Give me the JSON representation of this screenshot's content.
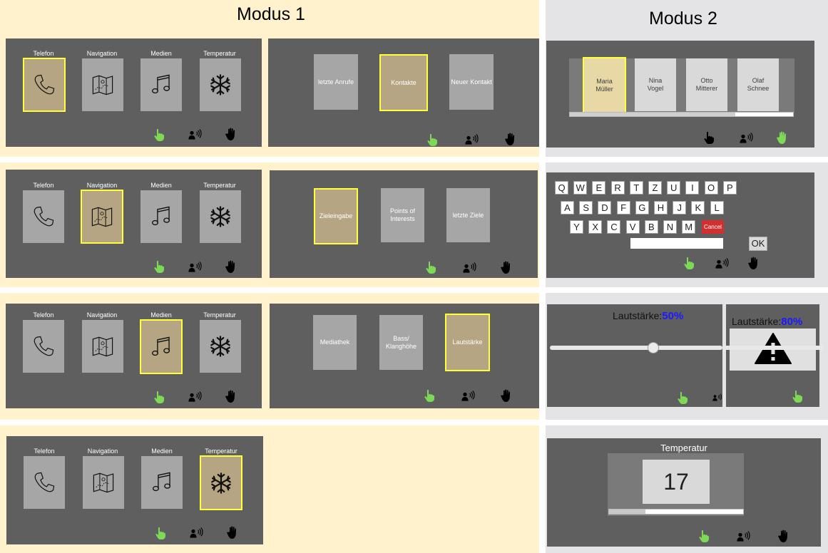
{
  "modes": {
    "mode1": "Modus 1",
    "mode2": "Modus 2"
  },
  "main_menu": {
    "telefon": "Telefon",
    "navigation": "Navigation",
    "medien": "Medien",
    "temperatur": "Temperatur"
  },
  "telefon_submenu": {
    "item1": "letzte Anrufe",
    "item2": "Kontakte",
    "item3": "Neuer Kontakt"
  },
  "navigation_submenu": {
    "item1": "Zieleingabe",
    "item2": "Points of Interests",
    "item3": "letzte Ziele"
  },
  "medien_submenu": {
    "item1": "Mediathek",
    "item2": "Bass/ Klanghöhe",
    "item3": "Lautstärke"
  },
  "contacts": [
    {
      "first": "Maria",
      "last": "Müller"
    },
    {
      "first": "Nina",
      "last": "Vogel"
    },
    {
      "first": "Otto",
      "last": "Mitterer"
    },
    {
      "first": "Olaf",
      "last": "Schnee"
    }
  ],
  "keyboard": {
    "row1": [
      "Q",
      "W",
      "E",
      "R",
      "T",
      "Z",
      "U",
      "I",
      "O",
      "P"
    ],
    "row2": [
      "A",
      "S",
      "D",
      "F",
      "G",
      "H",
      "J",
      "K",
      "L"
    ],
    "row3": [
      "Y",
      "X",
      "C",
      "V",
      "B",
      "N",
      "M"
    ],
    "cancel": "Cancel",
    "ok": "OK"
  },
  "volume": {
    "label": "Lautstärke:",
    "value1": "50%",
    "value2": "80%",
    "level1": 0.5
  },
  "temperature": {
    "title": "Temperatur",
    "value": "17",
    "level": 0.27
  },
  "colors": {
    "cream": "#fff2cc",
    "panel": "#5f5f5f",
    "tile": "#a6a6a6",
    "selected_tile": "#b6a582",
    "highlight": "#ffff3a",
    "touch_active": "#7ed957",
    "volume_value": "#1a1aff",
    "cancel": "#d32f2f"
  },
  "icons": [
    "phone-icon",
    "map-icon",
    "music-note-icon",
    "snowflake-icon",
    "touch-icon",
    "voice-icon",
    "hand-gesture-icon",
    "warning-icon"
  ]
}
